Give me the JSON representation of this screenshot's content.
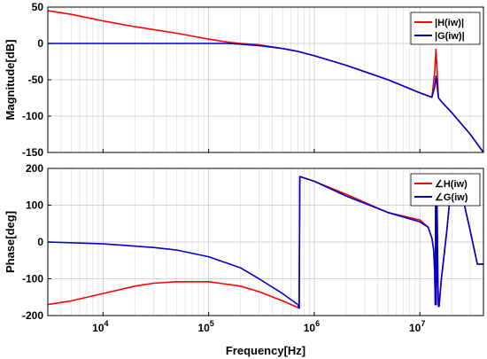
{
  "chart_data": [
    {
      "type": "line",
      "ylabel": "Magnitude[dB]",
      "xscale": "log",
      "xlim": [
        3000,
        40000000
      ],
      "ylim": [
        -150,
        50
      ],
      "yticks": [
        50,
        0,
        -50,
        -100,
        -150
      ],
      "grid": true,
      "legend_position": "top-right",
      "series": [
        {
          "name": "|H(iw)|",
          "color": "#ff0000",
          "x": [
            3000,
            5000,
            10000,
            20000,
            50000,
            100000,
            150000,
            200000,
            300000,
            500000,
            700000,
            1000000,
            2000000,
            5000000,
            10000000,
            13000000,
            13800000,
            14200000,
            14600000,
            15000000,
            16000000,
            20000000,
            30000000,
            40000000
          ],
          "y": [
            45,
            40,
            31,
            23,
            14,
            6,
            2,
            0,
            -2,
            -7,
            -11,
            -17,
            -30,
            -50,
            -68,
            -74,
            -40,
            -8,
            -40,
            -75,
            -80,
            -95,
            -125,
            -150
          ]
        },
        {
          "name": "|G(iw)|",
          "color": "#0000cc",
          "x": [
            3000,
            10000,
            50000,
            100000,
            150000,
            200000,
            300000,
            500000,
            700000,
            1000000,
            2000000,
            5000000,
            10000000,
            13000000,
            13800000,
            14200000,
            14600000,
            15000000,
            16000000,
            20000000,
            30000000,
            40000000
          ],
          "y": [
            0,
            0,
            0,
            0,
            0,
            -1,
            -3,
            -7,
            -11,
            -17,
            -30,
            -50,
            -68,
            -74,
            -60,
            -45,
            -60,
            -75,
            -80,
            -95,
            -125,
            -150
          ]
        }
      ]
    },
    {
      "type": "line",
      "xlabel": "Frequency[Hz]",
      "ylabel": "Phase[deg]",
      "xscale": "log",
      "xlim": [
        3000,
        40000000
      ],
      "ylim": [
        -200,
        200
      ],
      "yticks": [
        200,
        100,
        0,
        -100,
        -200
      ],
      "xticks": [
        {
          "value": 10000,
          "base": "10",
          "exp": "4"
        },
        {
          "value": 100000,
          "base": "10",
          "exp": "5"
        },
        {
          "value": 1000000,
          "base": "10",
          "exp": "6"
        },
        {
          "value": 10000000,
          "base": "10",
          "exp": "7"
        }
      ],
      "grid": true,
      "legend_position": "top-right",
      "series": [
        {
          "name": "∠H(iw)",
          "color": "#ff0000",
          "x": [
            3000,
            5000,
            10000,
            20000,
            30000,
            50000,
            100000,
            200000,
            300000,
            500000,
            700000,
            720000,
            730000,
            1000000,
            2000000,
            5000000,
            10000000,
            12000000,
            13000000,
            13500000,
            13800000,
            14000000,
            14100000,
            14300000,
            14500000,
            14800000,
            15000000,
            15200000,
            16000000,
            18000000,
            20000000,
            25000000,
            30000000,
            35000000,
            40000000
          ],
          "y": [
            -170,
            -160,
            -140,
            -120,
            -112,
            -108,
            -108,
            -120,
            -135,
            -160,
            -178,
            -180,
            178,
            165,
            130,
            80,
            60,
            40,
            10,
            -20,
            -80,
            -170,
            180,
            -170,
            150,
            -100,
            -175,
            -175,
            -100,
            30,
            170,
            130,
            30,
            -60,
            -60
          ]
        },
        {
          "name": "∠G(iw)",
          "color": "#0000cc",
          "x": [
            3000,
            10000,
            30000,
            50000,
            100000,
            200000,
            300000,
            500000,
            700000,
            720000,
            730000,
            1000000,
            2000000,
            5000000,
            10000000,
            12000000,
            13000000,
            13500000,
            13800000,
            14000000,
            14100000,
            14300000,
            14500000,
            14800000,
            15000000,
            15200000,
            16000000,
            18000000,
            20000000,
            25000000,
            30000000,
            35000000,
            40000000
          ],
          "y": [
            0,
            -5,
            -15,
            -22,
            -40,
            -70,
            -100,
            -140,
            -170,
            -180,
            178,
            165,
            125,
            80,
            55,
            40,
            10,
            -20,
            -80,
            -170,
            170,
            -170,
            150,
            -100,
            -175,
            -175,
            -100,
            30,
            170,
            130,
            30,
            -60,
            -60
          ]
        }
      ]
    }
  ]
}
